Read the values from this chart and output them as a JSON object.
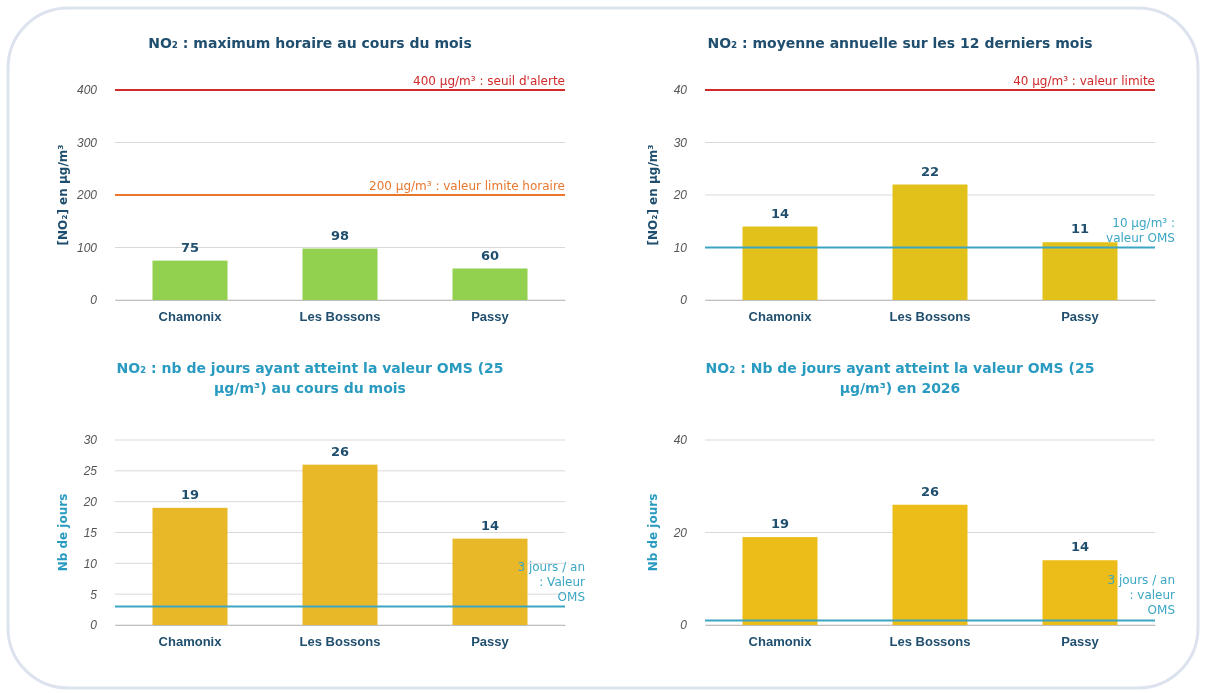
{
  "chart_data": [
    {
      "type": "bar",
      "title": "NO₂ : maximum horaire au cours du mois",
      "ylabel": "[NO₂] en µg/m³",
      "categories": [
        "Chamonix",
        "Les Bossons",
        "Passy"
      ],
      "values": [
        75,
        98,
        60
      ],
      "color": "#92d050",
      "ylim": [
        0,
        400
      ],
      "yticks": [
        0,
        100,
        200,
        300,
        400
      ],
      "grid": "y",
      "data_labels": true,
      "ref_lines": [
        {
          "axis": "y",
          "value": 400,
          "label": "400 µg/m³ : seuil d'alerte",
          "color": "#d02a2a"
        },
        {
          "axis": "y",
          "value": 200,
          "label": "200 µg/m³ : valeur limite horaire",
          "color": "#e8772e"
        }
      ]
    },
    {
      "type": "bar",
      "title": "NO₂ : moyenne annuelle sur les 12 derniers mois",
      "ylabel": "[NO₂] en µg/m³",
      "categories": [
        "Chamonix",
        "Les Bossons",
        "Passy"
      ],
      "values": [
        14,
        22,
        11
      ],
      "color": "#e2c21a",
      "ylim": [
        0,
        40
      ],
      "yticks": [
        0,
        10,
        20,
        30,
        40
      ],
      "grid": "y",
      "data_labels": true,
      "ref_lines": [
        {
          "axis": "y",
          "value": 40,
          "label": "40 µg/m³ : valeur limite",
          "color": "#d02a2a"
        },
        {
          "axis": "y",
          "value": 10,
          "label": "10 µg/m³ : valeur OMS",
          "color": "#3aa6c4"
        }
      ]
    },
    {
      "type": "bar",
      "title": "NO₂ : nb de jours ayant atteint la valeur OMS (25 µg/m³) au cours du mois",
      "ylabel": "Nb de jours",
      "categories": [
        "Chamonix",
        "Les Bossons",
        "Passy"
      ],
      "values": [
        19,
        26,
        14
      ],
      "color": "#e8b828",
      "ylim": [
        0,
        30
      ],
      "yticks": [
        0,
        5,
        10,
        15,
        20,
        25,
        30
      ],
      "grid": "y",
      "data_labels": true,
      "ref_lines": [
        {
          "axis": "y",
          "value": 3,
          "label": "3 jours / an : Valeur OMS",
          "color": "#3aa6c4"
        }
      ]
    },
    {
      "type": "bar",
      "title": "NO₂ : Nb de jours ayant atteint la valeur OMS (25 µg/m³) en 2026",
      "ylabel": "Nb de jours",
      "categories": [
        "Chamonix",
        "Les Bossons",
        "Passy"
      ],
      "values": [
        19,
        26,
        14
      ],
      "color": "#ecbc18",
      "ylim": [
        0,
        40
      ],
      "yticks": [
        0,
        20,
        40
      ],
      "grid": "y",
      "data_labels": true,
      "ref_lines": [
        {
          "axis": "y",
          "value": 1,
          "label": "3 jours / an : valeur OMS",
          "color": "#3aa6c4"
        }
      ]
    }
  ]
}
